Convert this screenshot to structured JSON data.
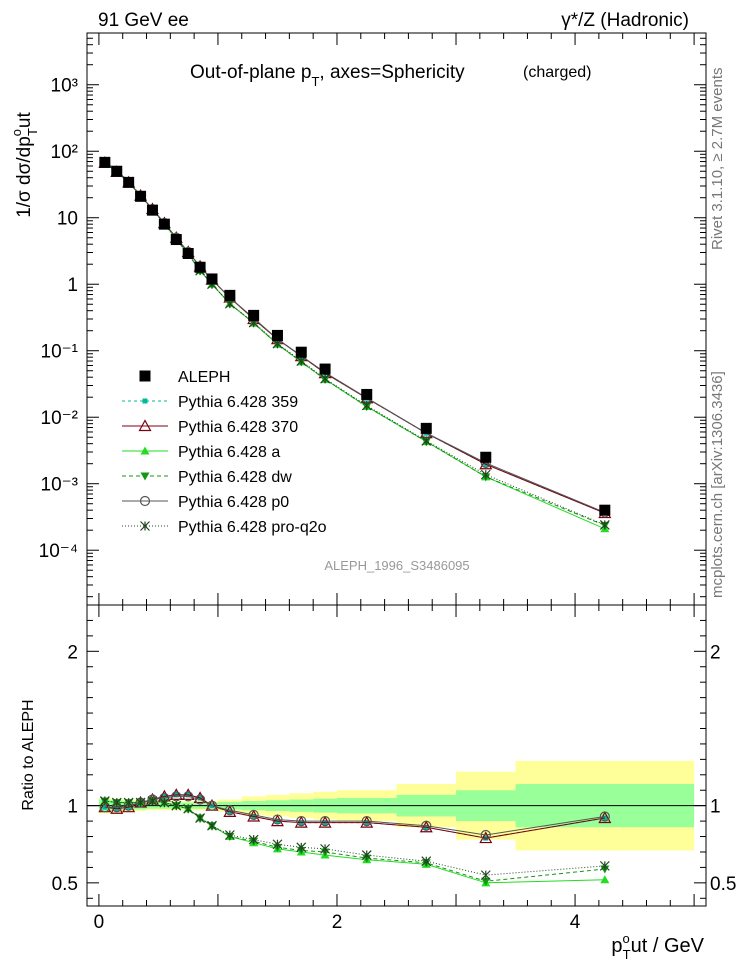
{
  "header": {
    "left": "91 GeV ee",
    "right": "γ*/Z (Hadronic)"
  },
  "side_labels": {
    "rivet": "Rivet 3.1.10, ≥ 2.7M events",
    "mcplots": "mcplots.cern.ch [arXiv:1306.3436]"
  },
  "chart_data": [
    {
      "type": "line",
      "title": "Out-of-plane p_T, axes=Sphericity",
      "title_suffix": "(charged)",
      "analysis_label": "ALEPH_1996_S3486095",
      "ylabel": "1/σ dσ/dp_T^out",
      "yscale": "log",
      "xlim": [
        -0.1,
        5.1
      ],
      "ylim": [
        1.5e-05,
        6000
      ],
      "y_tick_labels": [
        "10^-4",
        "10^-3",
        "10^-2",
        "10^-1",
        "1",
        "10",
        "10^2",
        "10^3"
      ],
      "legend_position": "middle-left",
      "series": [
        {
          "name": "ALEPH",
          "color": "#000000",
          "marker": "square-filled",
          "x": [
            0.05,
            0.15,
            0.25,
            0.35,
            0.45,
            0.55,
            0.65,
            0.75,
            0.85,
            0.95,
            1.1,
            1.3,
            1.5,
            1.7,
            1.9,
            2.25,
            2.75,
            3.25,
            4.25
          ],
          "y": [
            68,
            50,
            34,
            21,
            13,
            8.0,
            4.7,
            2.9,
            1.8,
            1.2,
            0.68,
            0.34,
            0.17,
            0.095,
            0.053,
            0.022,
            0.0068,
            0.0025,
            0.0004
          ]
        },
        {
          "name": "Pythia 6.428 359",
          "color": "#00bb99",
          "marker": "square-small",
          "dash": "3,3",
          "x": [
            0.05,
            0.15,
            0.25,
            0.35,
            0.45,
            0.55,
            0.65,
            0.75,
            0.85,
            0.95,
            1.1,
            1.3,
            1.5,
            1.7,
            1.9,
            2.25,
            2.75,
            3.25,
            4.25
          ],
          "y": [
            67,
            49,
            34,
            21.5,
            13.5,
            8.3,
            5.0,
            3.05,
            1.85,
            1.17,
            0.63,
            0.3,
            0.149,
            0.083,
            0.046,
            0.0193,
            0.00575,
            0.00196,
            0.000362
          ]
        },
        {
          "name": "Pythia 6.428 370",
          "color": "#7a0010",
          "marker": "triangle-open",
          "x": [
            0.05,
            0.15,
            0.25,
            0.35,
            0.45,
            0.55,
            0.65,
            0.75,
            0.85,
            0.95,
            1.1,
            1.3,
            1.5,
            1.7,
            1.9,
            2.25,
            2.75,
            3.25,
            4.25
          ],
          "y": [
            67,
            49,
            34,
            21.5,
            13.5,
            8.3,
            5.0,
            3.05,
            1.85,
            1.17,
            0.63,
            0.3,
            0.149,
            0.083,
            0.046,
            0.0193,
            0.00575,
            0.00196,
            0.000362
          ]
        },
        {
          "name": "Pythia 6.428 a",
          "color": "#22dd22",
          "marker": "triangle-filled",
          "x": [
            0.05,
            0.15,
            0.25,
            0.35,
            0.45,
            0.55,
            0.65,
            0.75,
            0.85,
            0.95,
            1.1,
            1.3,
            1.5,
            1.7,
            1.9,
            2.25,
            2.75,
            3.25,
            4.25
          ],
          "y": [
            70,
            51,
            35,
            21.5,
            13.4,
            8.1,
            4.75,
            2.85,
            1.6,
            1.0,
            0.51,
            0.26,
            0.125,
            0.068,
            0.037,
            0.0145,
            0.0043,
            0.00127,
            0.00021
          ]
        },
        {
          "name": "Pythia 6.428 dw",
          "color": "#119911",
          "marker": "triangle-down-filled",
          "dash": "4,3",
          "x": [
            0.05,
            0.15,
            0.25,
            0.35,
            0.45,
            0.55,
            0.65,
            0.75,
            0.85,
            0.95,
            1.1,
            1.3,
            1.5,
            1.7,
            1.9,
            2.25,
            2.75,
            3.25,
            4.25
          ],
          "y": [
            70,
            51,
            35,
            21.5,
            13.4,
            8.1,
            4.75,
            2.85,
            1.6,
            1.0,
            0.51,
            0.26,
            0.125,
            0.068,
            0.037,
            0.0145,
            0.0043,
            0.00127,
            0.000236
          ]
        },
        {
          "name": "Pythia 6.428 p0",
          "color": "#555555",
          "marker": "circle-open",
          "x": [
            0.05,
            0.15,
            0.25,
            0.35,
            0.45,
            0.55,
            0.65,
            0.75,
            0.85,
            0.95,
            1.1,
            1.3,
            1.5,
            1.7,
            1.9,
            2.25,
            2.75,
            3.25,
            4.25
          ],
          "y": [
            67,
            49,
            34,
            21.5,
            13.4,
            8.3,
            5.0,
            3.05,
            1.85,
            1.17,
            0.63,
            0.31,
            0.15,
            0.084,
            0.047,
            0.0196,
            0.0058,
            0.00205,
            0.00037
          ]
        },
        {
          "name": "Pythia 6.428 pro-q2o",
          "color": "#224422",
          "marker": "star",
          "dash": "1,2",
          "x": [
            0.05,
            0.15,
            0.25,
            0.35,
            0.45,
            0.55,
            0.65,
            0.75,
            0.85,
            0.95,
            1.1,
            1.3,
            1.5,
            1.7,
            1.9,
            2.25,
            2.75,
            3.25,
            4.25
          ],
          "y": [
            70,
            51,
            35,
            21.5,
            13.4,
            8.1,
            4.75,
            2.85,
            1.6,
            1.0,
            0.51,
            0.265,
            0.128,
            0.07,
            0.038,
            0.015,
            0.0044,
            0.00137,
            0.00024
          ]
        }
      ]
    },
    {
      "type": "line",
      "ylabel": "Ratio to ALEPH",
      "xlabel": "p_T^out / GeV",
      "xlim": [
        -0.1,
        5.1
      ],
      "ylim": [
        0.35,
        2.3
      ],
      "x_ticks": [
        0,
        2,
        4
      ],
      "y_ticks": [
        0.5,
        1,
        2
      ],
      "bands": {
        "edges": [
          0.0,
          0.1,
          0.2,
          0.3,
          0.4,
          0.5,
          0.6,
          0.7,
          0.8,
          0.9,
          1.0,
          1.2,
          1.4,
          1.6,
          1.8,
          2.0,
          2.5,
          3.0,
          3.5,
          5.0
        ],
        "inner": [
          0.04,
          0.035,
          0.03,
          0.025,
          0.02,
          0.02,
          0.02,
          0.02,
          0.02,
          0.02,
          0.025,
          0.03,
          0.035,
          0.04,
          0.045,
          0.05,
          0.07,
          0.1,
          0.14
        ],
        "outer": [
          0.05,
          0.045,
          0.04,
          0.035,
          0.03,
          0.03,
          0.03,
          0.03,
          0.03,
          0.03,
          0.04,
          0.06,
          0.07,
          0.08,
          0.09,
          0.1,
          0.14,
          0.22,
          0.29
        ],
        "inner_color": "#99ff99",
        "outer_color": "#ffff99"
      },
      "series": [
        {
          "name": "Pythia 6.428 359",
          "color": "#00bb99",
          "marker": "square-small",
          "dash": "3,3",
          "x": [
            0.05,
            0.15,
            0.25,
            0.35,
            0.45,
            0.55,
            0.65,
            0.75,
            0.85,
            0.95,
            1.1,
            1.3,
            1.5,
            1.7,
            1.9,
            2.25,
            2.75,
            3.25,
            4.25
          ],
          "y": [
            0.99,
            0.98,
            0.99,
            1.02,
            1.04,
            1.06,
            1.07,
            1.07,
            1.05,
            1.0,
            0.96,
            0.93,
            0.9,
            0.89,
            0.89,
            0.89,
            0.86,
            0.79,
            0.92
          ]
        },
        {
          "name": "Pythia 6.428 370",
          "color": "#7a0010",
          "marker": "triangle-open",
          "x": [
            0.05,
            0.15,
            0.25,
            0.35,
            0.45,
            0.55,
            0.65,
            0.75,
            0.85,
            0.95,
            1.1,
            1.3,
            1.5,
            1.7,
            1.9,
            2.25,
            2.75,
            3.25,
            4.25
          ],
          "y": [
            0.99,
            0.98,
            0.99,
            1.02,
            1.04,
            1.06,
            1.07,
            1.07,
            1.05,
            1.0,
            0.96,
            0.93,
            0.9,
            0.89,
            0.89,
            0.89,
            0.86,
            0.79,
            0.92
          ]
        },
        {
          "name": "Pythia 6.428 a",
          "color": "#22dd22",
          "marker": "triangle-filled",
          "x": [
            0.05,
            0.15,
            0.25,
            0.35,
            0.45,
            0.55,
            0.65,
            0.75,
            0.85,
            0.95,
            1.1,
            1.3,
            1.5,
            1.7,
            1.9,
            2.25,
            2.75,
            3.25,
            4.25
          ],
          "y": [
            1.03,
            1.02,
            1.02,
            1.02,
            1.03,
            1.02,
            1.0,
            0.98,
            0.92,
            0.87,
            0.8,
            0.76,
            0.72,
            0.7,
            0.68,
            0.65,
            0.62,
            0.5,
            0.52
          ]
        },
        {
          "name": "Pythia 6.428 dw",
          "color": "#119911",
          "marker": "triangle-down-filled",
          "dash": "4,3",
          "x": [
            0.05,
            0.15,
            0.25,
            0.35,
            0.45,
            0.55,
            0.65,
            0.75,
            0.85,
            0.95,
            1.1,
            1.3,
            1.5,
            1.7,
            1.9,
            2.25,
            2.75,
            3.25,
            4.25
          ],
          "y": [
            1.03,
            1.02,
            1.02,
            1.02,
            1.03,
            1.02,
            1.0,
            0.98,
            0.92,
            0.87,
            0.8,
            0.77,
            0.73,
            0.71,
            0.7,
            0.66,
            0.63,
            0.51,
            0.59
          ]
        },
        {
          "name": "Pythia 6.428 p0",
          "color": "#555555",
          "marker": "circle-open",
          "x": [
            0.05,
            0.15,
            0.25,
            0.35,
            0.45,
            0.55,
            0.65,
            0.75,
            0.85,
            0.95,
            1.1,
            1.3,
            1.5,
            1.7,
            1.9,
            2.25,
            2.75,
            3.25,
            4.25
          ],
          "y": [
            0.99,
            0.99,
            1.0,
            1.02,
            1.04,
            1.05,
            1.06,
            1.06,
            1.04,
            1.0,
            0.97,
            0.94,
            0.91,
            0.9,
            0.9,
            0.9,
            0.87,
            0.81,
            0.93
          ]
        },
        {
          "name": "Pythia 6.428 pro-q2o",
          "color": "#224422",
          "marker": "star",
          "dash": "1,2",
          "x": [
            0.05,
            0.15,
            0.25,
            0.35,
            0.45,
            0.55,
            0.65,
            0.75,
            0.85,
            0.95,
            1.1,
            1.3,
            1.5,
            1.7,
            1.9,
            2.25,
            2.75,
            3.25,
            4.25
          ],
          "y": [
            1.03,
            1.02,
            1.02,
            1.02,
            1.03,
            1.02,
            1.0,
            0.98,
            0.92,
            0.87,
            0.81,
            0.78,
            0.75,
            0.73,
            0.72,
            0.68,
            0.64,
            0.55,
            0.61
          ]
        }
      ]
    }
  ]
}
